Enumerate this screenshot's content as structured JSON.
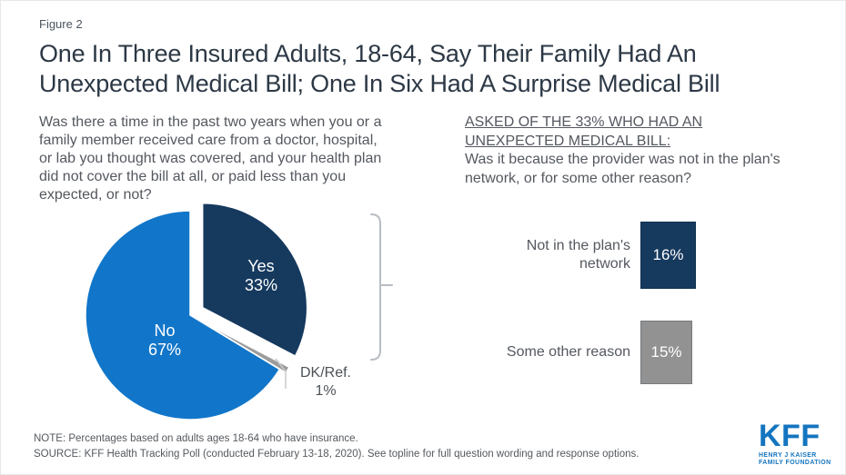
{
  "figure_label": "Figure 2",
  "title": {
    "lines": [
      "One In Three Insured Adults, 18-64, Say Their Family Had An",
      "Unexpected Medical Bill; One In Six Had A Surprise Medical Bill"
    ]
  },
  "left_panel": {
    "question_lines": [
      "Was there a time in the past two years when you or a",
      "family member received care from a doctor, hospital,",
      "or lab you thought was covered, and your health plan",
      "did not cover the bill at all, or paid less than you",
      "expected, or not?"
    ]
  },
  "right_panel": {
    "heading_lines": [
      "ASKED OF THE 33% WHO HAD AN",
      "UNEXPECTED MEDICAL BILL:"
    ],
    "question_lines": [
      "Was it because the provider was not in the plan's",
      "network, or for some other reason?"
    ]
  },
  "chart_data": [
    {
      "type": "pie",
      "title": "Unexpected medical bill in past two years",
      "slices": [
        {
          "label": "Yes",
          "value": 33,
          "pct": "33%",
          "color": "#16395e",
          "explode": 16
        },
        {
          "label": "DK/Ref.",
          "value": 1,
          "pct": "1%",
          "color": "#9c9c9c",
          "explode": 8
        },
        {
          "label": "No",
          "value": 67,
          "pct": "67%",
          "color": "#1176c9",
          "explode": 0
        }
      ],
      "legend_position": "inside",
      "grid": false
    },
    {
      "type": "bar",
      "title": "Reason for unexpected medical bill (among the 33%)",
      "categories": [
        "Not in the plan's network",
        "Some other reason"
      ],
      "values": [
        16,
        15
      ],
      "labels": [
        "16%",
        "15%"
      ],
      "colors": [
        "#16395e",
        "#929292"
      ],
      "xlabel": "",
      "ylabel": "",
      "orientation": "icon-box"
    }
  ],
  "footer": {
    "note": "NOTE: Percentages based on adults ages 18-64 who have insurance.",
    "source": "SOURCE: KFF Health Tracking Poll (conducted February 13-18, 2020). See topline for full question wording and response options."
  },
  "logo": {
    "text": "KFF",
    "sub1": "HENRY J KAISER",
    "sub2": "FAMILY FOUNDATION",
    "color": "#1475bf"
  },
  "style": {
    "bracket_color": "#b8bdc3",
    "leader_color": "#c8cbcf"
  }
}
